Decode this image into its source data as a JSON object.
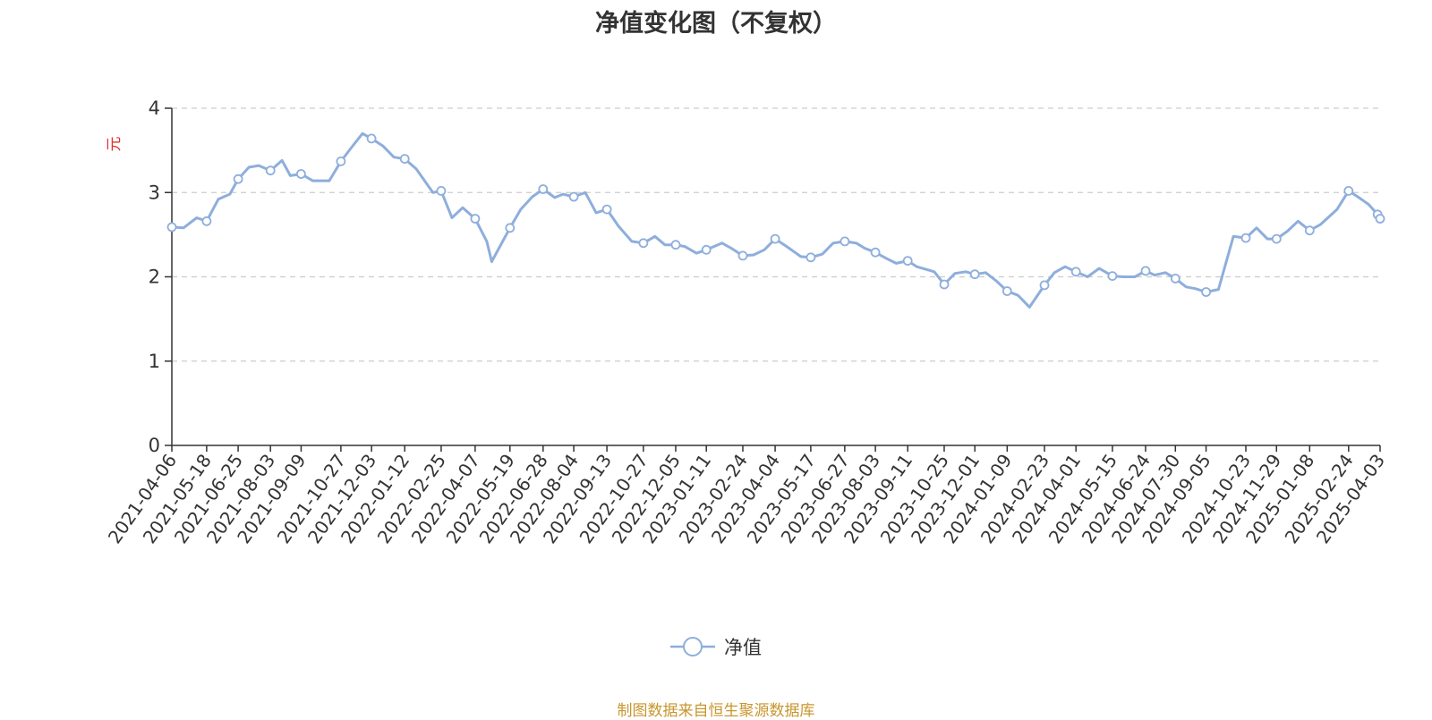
{
  "chart_data": {
    "type": "line",
    "title": "净值变化图（不复权）",
    "ylabel": "元",
    "ylim": [
      0,
      4
    ],
    "y_ticks": [
      0,
      1,
      2,
      3,
      4
    ],
    "grid": true,
    "legend_position": "bottom",
    "x_tick_labels": [
      "2021-04-06",
      "2021-05-18",
      "2021-06-25",
      "2021-08-03",
      "2021-09-09",
      "2021-10-27",
      "2021-12-03",
      "2022-01-12",
      "2022-02-25",
      "2022-04-07",
      "2022-05-19",
      "2022-06-28",
      "2022-08-04",
      "2022-09-13",
      "2022-10-27",
      "2022-12-05",
      "2023-01-11",
      "2023-02-24",
      "2023-04-04",
      "2023-05-17",
      "2023-06-27",
      "2023-08-03",
      "2023-09-11",
      "2023-10-25",
      "2023-12-01",
      "2024-01-09",
      "2024-02-23",
      "2024-04-01",
      "2024-05-15",
      "2024-06-24",
      "2024-07-30",
      "2024-09-05",
      "2024-10-23",
      "2024-11-29",
      "2025-01-08",
      "2025-02-24",
      "2025-04-03"
    ],
    "series": [
      {
        "name": "净值",
        "color": "#8eaedc",
        "x": [
          "2021-04-06",
          "2021-04-20",
          "2021-05-06",
          "2021-05-18",
          "2021-06-01",
          "2021-06-15",
          "2021-06-25",
          "2021-07-08",
          "2021-07-20",
          "2021-08-03",
          "2021-08-17",
          "2021-08-27",
          "2021-09-09",
          "2021-09-23",
          "2021-10-13",
          "2021-10-27",
          "2021-11-10",
          "2021-11-22",
          "2021-12-03",
          "2021-12-17",
          "2021-12-30",
          "2022-01-12",
          "2022-01-26",
          "2022-02-15",
          "2022-02-25",
          "2022-03-10",
          "2022-03-23",
          "2022-04-07",
          "2022-04-21",
          "2022-04-27",
          "2022-05-19",
          "2022-06-01",
          "2022-06-15",
          "2022-06-28",
          "2022-07-12",
          "2022-07-22",
          "2022-08-04",
          "2022-08-18",
          "2022-08-31",
          "2022-09-13",
          "2022-09-27",
          "2022-10-13",
          "2022-10-27",
          "2022-11-10",
          "2022-11-22",
          "2022-12-05",
          "2022-12-16",
          "2022-12-30",
          "2023-01-11",
          "2023-01-30",
          "2023-02-10",
          "2023-02-24",
          "2023-03-09",
          "2023-03-22",
          "2023-04-04",
          "2023-04-18",
          "2023-05-05",
          "2023-05-17",
          "2023-05-31",
          "2023-06-13",
          "2023-06-27",
          "2023-07-11",
          "2023-07-21",
          "2023-08-03",
          "2023-08-16",
          "2023-08-28",
          "2023-09-11",
          "2023-09-22",
          "2023-10-13",
          "2023-10-25",
          "2023-11-07",
          "2023-11-20",
          "2023-12-01",
          "2023-12-14",
          "2023-12-27",
          "2024-01-09",
          "2024-01-22",
          "2024-02-05",
          "2024-02-23",
          "2024-03-06",
          "2024-03-19",
          "2024-04-01",
          "2024-04-15",
          "2024-04-29",
          "2024-05-15",
          "2024-05-28",
          "2024-06-11",
          "2024-06-24",
          "2024-07-05",
          "2024-07-18",
          "2024-07-30",
          "2024-08-12",
          "2024-08-23",
          "2024-09-05",
          "2024-09-20",
          "2024-10-08",
          "2024-10-23",
          "2024-11-05",
          "2024-11-18",
          "2024-11-29",
          "2024-12-12",
          "2024-12-25",
          "2025-01-08",
          "2025-01-21",
          "2025-02-10",
          "2025-02-24",
          "2025-03-07",
          "2025-03-20",
          "2025-03-31",
          "2025-04-03"
        ],
        "values": [
          2.59,
          2.58,
          2.7,
          2.66,
          2.92,
          2.98,
          3.16,
          3.3,
          3.32,
          3.26,
          3.38,
          3.2,
          3.22,
          3.14,
          3.14,
          3.37,
          3.55,
          3.7,
          3.64,
          3.55,
          3.42,
          3.4,
          3.28,
          3.0,
          3.02,
          2.7,
          2.82,
          2.69,
          2.42,
          2.18,
          2.58,
          2.8,
          2.95,
          3.04,
          2.94,
          2.98,
          2.95,
          3.0,
          2.76,
          2.8,
          2.6,
          2.42,
          2.4,
          2.48,
          2.38,
          2.38,
          2.36,
          2.28,
          2.32,
          2.4,
          2.34,
          2.25,
          2.26,
          2.32,
          2.45,
          2.36,
          2.24,
          2.23,
          2.27,
          2.4,
          2.42,
          2.4,
          2.34,
          2.29,
          2.22,
          2.16,
          2.19,
          2.12,
          2.06,
          1.91,
          2.04,
          2.06,
          2.03,
          2.05,
          1.95,
          1.83,
          1.78,
          1.64,
          1.9,
          2.05,
          2.12,
          2.06,
          2.0,
          2.1,
          2.01,
          2.0,
          2.0,
          2.07,
          2.02,
          2.05,
          1.98,
          1.88,
          1.86,
          1.82,
          1.85,
          2.48,
          2.46,
          2.58,
          2.45,
          2.45,
          2.54,
          2.66,
          2.55,
          2.62,
          2.8,
          3.02,
          2.95,
          2.86,
          2.74,
          2.69
        ]
      }
    ]
  },
  "legend": {
    "label": "净值"
  },
  "footer": {
    "source": "制图数据来自恒生聚源数据库"
  }
}
